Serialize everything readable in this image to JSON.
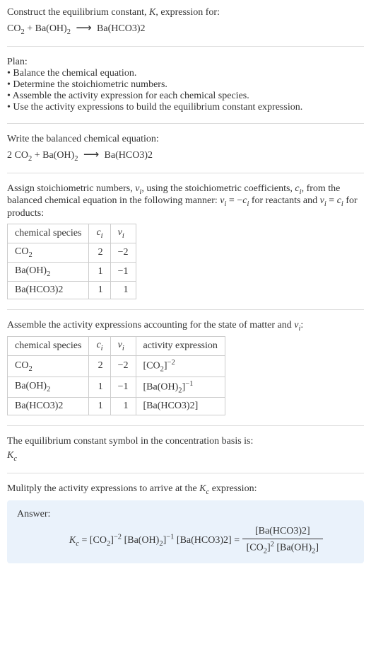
{
  "intro": {
    "line1": "Construct the equilibrium constant, ",
    "kvar": "K",
    "line1b": ", expression for:",
    "eq_lhs_co2": "CO",
    "eq_lhs_co2_sub": "2",
    "plus": " + ",
    "eq_lhs_ba": "Ba(OH)",
    "eq_lhs_ba_sub": "2",
    "arrow": "⟶",
    "eq_rhs": "Ba(HCO3)2"
  },
  "plan": {
    "heading": "Plan:",
    "b1": "• Balance the chemical equation.",
    "b2": "• Determine the stoichiometric numbers.",
    "b3": "• Assemble the activity expression for each chemical species.",
    "b4": "• Use the activity expressions to build the equilibrium constant expression."
  },
  "balanced": {
    "heading": "Write the balanced chemical equation:",
    "coef2": "2 ",
    "co2": "CO",
    "co2sub": "2",
    "plus": " + ",
    "baoh": "Ba(OH)",
    "baohsub": "2",
    "arrow": "⟶",
    "rhs": "Ba(HCO3)2"
  },
  "stoich": {
    "text1a": "Assign stoichiometric numbers, ",
    "nu": "ν",
    "nu_sub": "i",
    "text1b": ", using the stoichiometric coefficients, ",
    "c": "c",
    "c_sub": "i",
    "text1c": ", from the balanced chemical equation in the following manner: ",
    "rel1": "ν",
    "rel1b": " = −",
    "rel1c": "c",
    "text1d": " for reactants and ",
    "rel2": "ν",
    "rel2b": " = ",
    "rel2c": "c",
    "text1e": " for products:",
    "headers": {
      "species": "chemical species",
      "ci_sym": "c",
      "ci_sub": "i",
      "nu_sym": "ν",
      "nu_sub": "i"
    },
    "rows": [
      {
        "sp_a": "CO",
        "sp_sub": "2",
        "sp_b": "",
        "ci": "2",
        "nu": "−2"
      },
      {
        "sp_a": "Ba(OH)",
        "sp_sub": "2",
        "sp_b": "",
        "ci": "1",
        "nu": "−1"
      },
      {
        "sp_a": "Ba(HCO3)2",
        "sp_sub": "",
        "sp_b": "",
        "ci": "1",
        "nu": "1"
      }
    ]
  },
  "activity": {
    "text_a": "Assemble the activity expressions accounting for the state of matter and ",
    "nu": "ν",
    "nu_sub": "i",
    "text_b": ":",
    "headers": {
      "species": "chemical species",
      "ci_sym": "c",
      "ci_sub": "i",
      "nu_sym": "ν",
      "nu_sub": "i",
      "act": "activity expression"
    },
    "rows": [
      {
        "sp_a": "CO",
        "sp_sub": "2",
        "ci": "2",
        "nu": "−2",
        "act_a": "[CO",
        "act_sub": "2",
        "act_b": "]",
        "act_sup": "−2"
      },
      {
        "sp_a": "Ba(OH)",
        "sp_sub": "2",
        "ci": "1",
        "nu": "−1",
        "act_a": "[Ba(OH)",
        "act_sub": "2",
        "act_b": "]",
        "act_sup": "−1"
      },
      {
        "sp_a": "Ba(HCO3)2",
        "sp_sub": "",
        "ci": "1",
        "nu": "1",
        "act_a": "[Ba(HCO3)2]",
        "act_sub": "",
        "act_b": "",
        "act_sup": ""
      }
    ]
  },
  "kcintro": {
    "text": "The equilibrium constant symbol in the concentration basis is:",
    "kc": "K",
    "kc_sub": "c"
  },
  "multiply": {
    "text_a": "Mulitply the activity expressions to arrive at the ",
    "kc": "K",
    "kc_sub": "c",
    "text_b": " expression:"
  },
  "answer": {
    "heading": "Answer:",
    "kc": "K",
    "kc_sub": "c",
    "eq": " = ",
    "t1": "[CO",
    "t1sub": "2",
    "t1b": "]",
    "t1sup": "−2",
    "sp": " ",
    "t2": "[Ba(OH)",
    "t2sub": "2",
    "t2b": "]",
    "t2sup": "−1",
    "t3": "[Ba(HCO3)2]",
    "eq2": " = ",
    "fnum": "[Ba(HCO3)2]",
    "fden_a": "[CO",
    "fden_asub": "2",
    "fden_ab": "]",
    "fden_asup": "2",
    "fden_b": " [Ba(OH)",
    "fden_bsub": "2",
    "fden_bb": "]"
  }
}
